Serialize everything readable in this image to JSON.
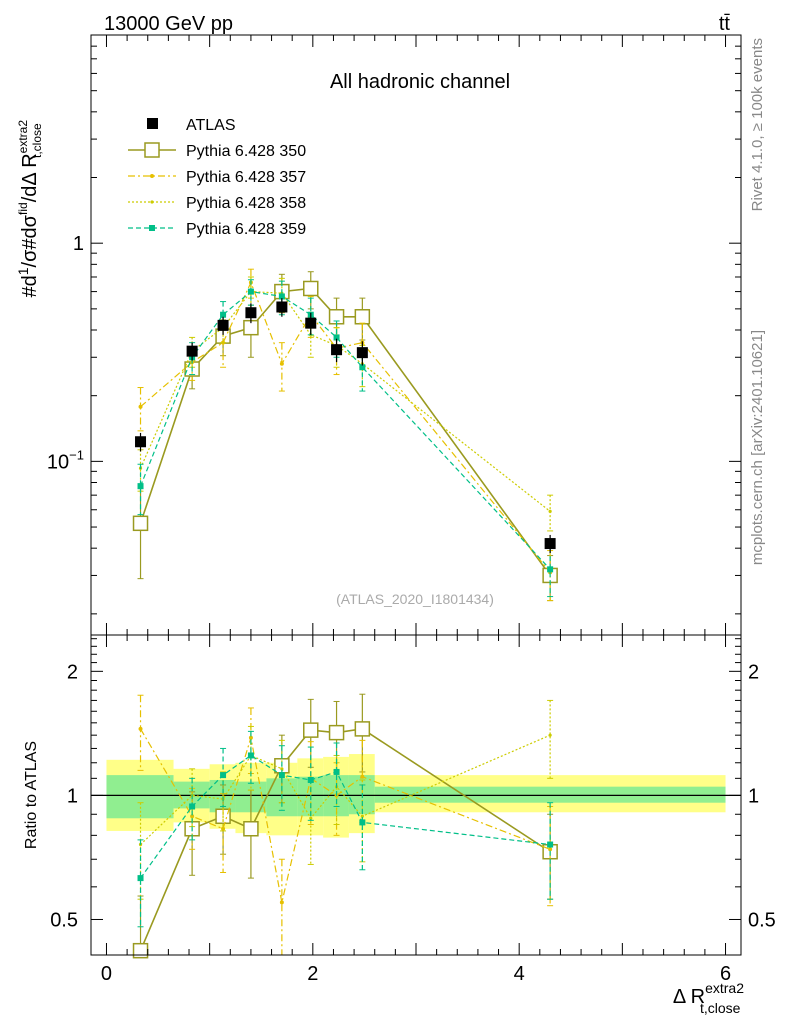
{
  "header": {
    "energy_label": "13000 GeV pp",
    "process_label": "tt̄"
  },
  "side_text": {
    "rivet": "Rivet 4.1.0, ≥ 100k events",
    "mcplots": "mcplots.cern.ch [arXiv:2401.10621]"
  },
  "colors": {
    "atlas": "#000000",
    "p350": "#9a9a20",
    "p357": "#e6c000",
    "p358": "#cccc00",
    "p359": "#00bf88",
    "band_inner": "#90ee90",
    "band_outer": "#ffff88"
  },
  "chart_data": [
    {
      "type": "scatter",
      "title": "All hadronic channel",
      "ylabel": "#d1/σ#dσ^fid/dΔ R^extra2_t,close",
      "yscale": "log",
      "xlim": [
        -0.15,
        6.15
      ],
      "ylim": [
        0.016,
        9.0
      ],
      "ytick_labels": [
        "10^-1",
        "1"
      ],
      "ytick_values": [
        0.1,
        1
      ],
      "watermark": "(ATLAS_2020_I1801434)",
      "legend": [
        "ATLAS",
        "Pythia 6.428 350",
        "Pythia 6.428 357",
        "Pythia 6.428 358",
        "Pythia 6.428 359"
      ],
      "bins": [
        [
          0.0,
          0.65
        ],
        [
          0.65,
          1.0
        ],
        [
          1.0,
          1.25
        ],
        [
          1.25,
          1.55
        ],
        [
          1.55,
          1.85
        ],
        [
          1.85,
          2.1
        ],
        [
          2.1,
          2.35
        ],
        [
          2.35,
          2.6
        ],
        [
          2.6,
          6.0
        ]
      ],
      "series": [
        {
          "name": "ATLAS",
          "x": [
            0.33,
            0.83,
            1.13,
            1.4,
            1.7,
            1.98,
            2.23,
            2.48,
            4.3
          ],
          "values": [
            0.123,
            0.32,
            0.42,
            0.48,
            0.51,
            0.43,
            0.325,
            0.315,
            0.042
          ],
          "err_lo": [
            0.012,
            0.03,
            0.04,
            0.05,
            0.05,
            0.05,
            0.04,
            0.04,
            0.004
          ],
          "err_hi": [
            0.012,
            0.03,
            0.04,
            0.05,
            0.05,
            0.05,
            0.04,
            0.04,
            0.004
          ]
        },
        {
          "name": "Pythia 6.428 350",
          "x": [
            0.33,
            0.83,
            1.13,
            1.4,
            1.7,
            1.98,
            2.23,
            2.48,
            4.3
          ],
          "values": [
            0.052,
            0.265,
            0.375,
            0.41,
            0.6,
            0.62,
            0.46,
            0.46,
            0.03
          ],
          "err_lo": [
            0.023,
            0.05,
            0.07,
            0.11,
            0.12,
            0.12,
            0.1,
            0.1,
            0.007
          ],
          "err_hi": [
            0.023,
            0.05,
            0.07,
            0.11,
            0.12,
            0.12,
            0.1,
            0.1,
            0.007
          ]
        },
        {
          "name": "Pythia 6.428 357",
          "x": [
            0.33,
            0.83,
            1.13,
            1.4,
            1.7,
            1.98,
            2.23,
            2.48,
            4.3
          ],
          "values": [
            0.178,
            0.285,
            0.35,
            0.66,
            0.28,
            0.47,
            0.33,
            0.35,
            0.031
          ],
          "err_lo": [
            0.04,
            0.05,
            0.08,
            0.1,
            0.07,
            0.1,
            0.08,
            0.08,
            0.008
          ],
          "err_hi": [
            0.04,
            0.05,
            0.08,
            0.1,
            0.07,
            0.1,
            0.08,
            0.08,
            0.008
          ]
        },
        {
          "name": "Pythia 6.428 358",
          "x": [
            0.33,
            0.83,
            1.13,
            1.4,
            1.7,
            1.98,
            2.23,
            2.48,
            4.3
          ],
          "values": [
            0.093,
            0.32,
            0.41,
            0.6,
            0.59,
            0.38,
            0.34,
            0.28,
            0.059
          ],
          "err_lo": [
            0.02,
            0.05,
            0.06,
            0.1,
            0.1,
            0.08,
            0.07,
            0.06,
            0.011
          ],
          "err_hi": [
            0.02,
            0.05,
            0.06,
            0.1,
            0.1,
            0.08,
            0.07,
            0.06,
            0.011
          ]
        },
        {
          "name": "Pythia 6.428 359",
          "x": [
            0.33,
            0.83,
            1.13,
            1.4,
            1.7,
            1.98,
            2.23,
            2.48,
            4.3
          ],
          "values": [
            0.077,
            0.3,
            0.47,
            0.6,
            0.57,
            0.47,
            0.37,
            0.27,
            0.032
          ],
          "err_lo": [
            0.02,
            0.05,
            0.07,
            0.08,
            0.1,
            0.09,
            0.07,
            0.06,
            0.008
          ],
          "err_hi": [
            0.02,
            0.05,
            0.07,
            0.08,
            0.1,
            0.09,
            0.07,
            0.06,
            0.008
          ]
        }
      ]
    },
    {
      "type": "scatter",
      "title": "",
      "ylabel": "Ratio to ATLAS",
      "xlabel": "Δ R^extra2_t,close",
      "yscale": "log",
      "xlim": [
        -0.15,
        6.15
      ],
      "ylim": [
        0.41,
        2.45
      ],
      "ytick_labels": [
        "0.5",
        "1",
        "2"
      ],
      "ytick_values": [
        0.5,
        1,
        2
      ],
      "xtick_labels": [
        "0",
        "2",
        "4",
        "6"
      ],
      "xtick_values": [
        0,
        2,
        4,
        6
      ],
      "band_bins": [
        [
          0.0,
          0.65
        ],
        [
          0.65,
          1.0
        ],
        [
          1.0,
          1.25
        ],
        [
          1.25,
          1.55
        ],
        [
          1.55,
          1.85
        ],
        [
          1.85,
          2.1
        ],
        [
          2.1,
          2.35
        ],
        [
          2.35,
          2.6
        ],
        [
          2.6,
          6.0
        ]
      ],
      "band_inner": [
        [
          0.88,
          1.12
        ],
        [
          0.93,
          1.08
        ],
        [
          0.91,
          1.09
        ],
        [
          0.91,
          1.08
        ],
        [
          0.89,
          1.1
        ],
        [
          0.89,
          1.11
        ],
        [
          0.89,
          1.12
        ],
        [
          0.9,
          1.12
        ],
        [
          0.96,
          1.05
        ]
      ],
      "band_outer": [
        [
          0.82,
          1.22
        ],
        [
          0.86,
          1.16
        ],
        [
          0.83,
          1.19
        ],
        [
          0.81,
          1.2
        ],
        [
          0.8,
          1.2
        ],
        [
          0.8,
          1.23
        ],
        [
          0.79,
          1.24
        ],
        [
          0.81,
          1.26
        ],
        [
          0.91,
          1.12
        ]
      ],
      "series": [
        {
          "name": "Pythia 6.428 350",
          "x": [
            0.33,
            0.83,
            1.13,
            1.4,
            1.7,
            1.98,
            2.23,
            2.48,
            4.3
          ],
          "values": [
            0.42,
            0.83,
            0.89,
            0.83,
            1.18,
            1.44,
            1.42,
            1.45,
            0.73
          ],
          "err_lo": [
            0.15,
            0.19,
            0.17,
            0.2,
            0.22,
            0.27,
            0.27,
            0.31,
            0.17
          ],
          "err_hi": [
            0.15,
            0.19,
            0.17,
            0.2,
            0.22,
            0.27,
            0.27,
            0.31,
            0.17
          ]
        },
        {
          "name": "Pythia 6.428 357",
          "x": [
            0.33,
            0.83,
            1.13,
            1.4,
            1.7,
            1.98,
            2.23,
            2.48,
            4.3
          ],
          "values": [
            1.45,
            0.89,
            0.83,
            1.38,
            0.55,
            1.1,
            1.0,
            1.11,
            0.74
          ],
          "err_lo": [
            0.3,
            0.15,
            0.18,
            0.25,
            0.15,
            0.25,
            0.2,
            0.25,
            0.2
          ],
          "err_hi": [
            0.3,
            0.15,
            0.18,
            0.25,
            0.15,
            0.25,
            0.2,
            0.25,
            0.2
          ]
        },
        {
          "name": "Pythia 6.428 358",
          "x": [
            0.33,
            0.83,
            1.13,
            1.4,
            1.7,
            1.98,
            2.23,
            2.48,
            4.3
          ],
          "values": [
            0.76,
            1.0,
            0.98,
            1.25,
            1.16,
            0.88,
            1.05,
            0.89,
            1.4
          ],
          "err_lo": [
            0.2,
            0.16,
            0.16,
            0.22,
            0.2,
            0.2,
            0.2,
            0.2,
            0.3
          ],
          "err_hi": [
            0.2,
            0.16,
            0.16,
            0.22,
            0.2,
            0.2,
            0.2,
            0.2,
            0.3
          ]
        },
        {
          "name": "Pythia 6.428 359",
          "x": [
            0.33,
            0.83,
            1.13,
            1.4,
            1.7,
            1.98,
            2.23,
            2.48,
            4.3
          ],
          "values": [
            0.63,
            0.94,
            1.12,
            1.25,
            1.12,
            1.09,
            1.14,
            0.86,
            0.76
          ],
          "err_lo": [
            0.15,
            0.16,
            0.18,
            0.18,
            0.2,
            0.22,
            0.2,
            0.2,
            0.2
          ],
          "err_hi": [
            0.15,
            0.16,
            0.18,
            0.18,
            0.2,
            0.22,
            0.2,
            0.2,
            0.2
          ]
        }
      ]
    }
  ]
}
